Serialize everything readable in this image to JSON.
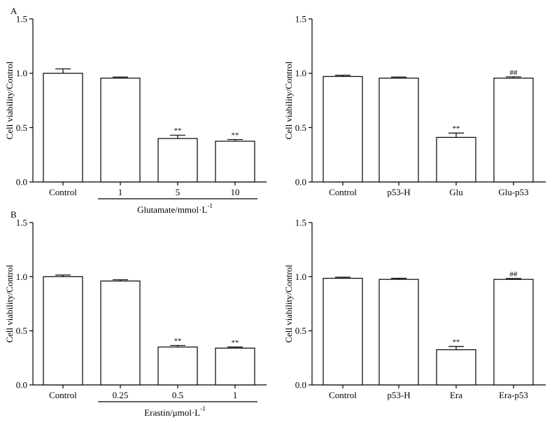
{
  "chart_data": [
    {
      "type": "bar",
      "panel_letter": "A",
      "title": "",
      "ylabel": "Cell viability/Control",
      "xlabel": "",
      "ylim": [
        0,
        1.5
      ],
      "yticks": [
        "0.0",
        "0.5",
        "1.0",
        "1.5"
      ],
      "categories": [
        "Control",
        "1",
        "5",
        "10"
      ],
      "values": [
        1.0,
        0.955,
        0.4,
        0.375
      ],
      "errors": [
        0.04,
        0.01,
        0.03,
        0.015
      ],
      "significance": [
        "",
        "",
        "**",
        "**"
      ],
      "group_label": {
        "text": "Glutamate/mmol·L",
        "superscript": "-1",
        "from_index": 1,
        "to_index": 3
      }
    },
    {
      "type": "bar",
      "panel_letter": "",
      "title": "",
      "ylabel": "Cell viability/Control",
      "xlabel": "",
      "ylim": [
        0,
        1.5
      ],
      "yticks": [
        "0.0",
        "0.5",
        "1.0",
        "1.5"
      ],
      "categories": [
        "Control",
        "p53-H",
        "Glu",
        "Glu-p53"
      ],
      "values": [
        0.97,
        0.955,
        0.41,
        0.955
      ],
      "errors": [
        0.012,
        0.01,
        0.04,
        0.012
      ],
      "significance": [
        "",
        "",
        "**",
        "##"
      ],
      "group_label": null
    },
    {
      "type": "bar",
      "panel_letter": "B",
      "title": "",
      "ylabel": "Cell viability/Control",
      "xlabel": "",
      "ylim": [
        0,
        1.5
      ],
      "yticks": [
        "0.0",
        "0.5",
        "1.0",
        "1.5"
      ],
      "categories": [
        "Control",
        "0.25",
        "0.5",
        "1"
      ],
      "values": [
        1.0,
        0.96,
        0.35,
        0.34
      ],
      "errors": [
        0.015,
        0.012,
        0.015,
        0.01
      ],
      "significance": [
        "",
        "",
        "**",
        "**"
      ],
      "group_label": {
        "text": "Erastin/μmol·L",
        "superscript": "-1",
        "from_index": 1,
        "to_index": 3
      }
    },
    {
      "type": "bar",
      "panel_letter": "",
      "title": "",
      "ylabel": "Cell viability/Control",
      "xlabel": "",
      "ylim": [
        0,
        1.5
      ],
      "yticks": [
        "0.0",
        "0.5",
        "1.0",
        "1.5"
      ],
      "categories": [
        "Control",
        "p53-H",
        "Era",
        "Era-p53"
      ],
      "values": [
        0.985,
        0.975,
        0.325,
        0.975
      ],
      "errors": [
        0.01,
        0.01,
        0.03,
        0.008
      ],
      "significance": [
        "",
        "",
        "**",
        "##"
      ],
      "group_label": null
    }
  ]
}
